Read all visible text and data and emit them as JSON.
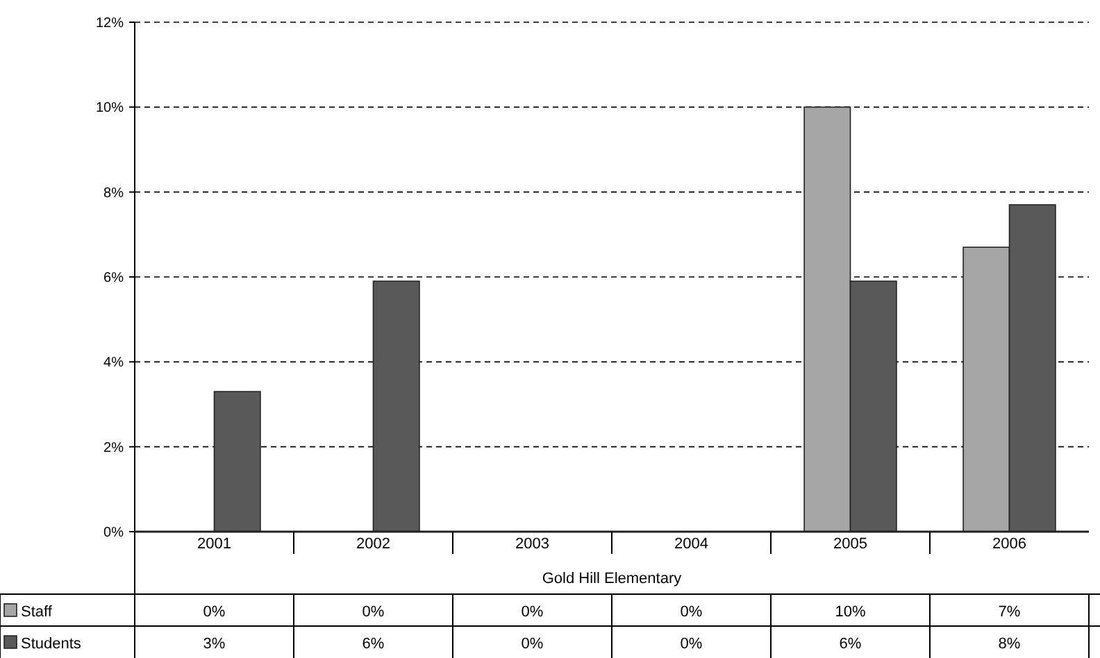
{
  "chart_data": {
    "type": "bar",
    "xlabel": "Gold Hill Elementary",
    "categories": [
      "2001",
      "2002",
      "2003",
      "2004",
      "2005",
      "2006"
    ],
    "series": [
      {
        "name": "Staff",
        "color": "#a6a6a6",
        "values": [
          0,
          0,
          0,
          0,
          10,
          6.7
        ],
        "value_labels": [
          "0%",
          "0%",
          "0%",
          "0%",
          "10%",
          "7%"
        ]
      },
      {
        "name": "Students",
        "color": "#595959",
        "values": [
          3.3,
          5.9,
          0,
          0,
          5.9,
          7.7
        ],
        "value_labels": [
          "3%",
          "6%",
          "0%",
          "0%",
          "6%",
          "8%"
        ]
      }
    ],
    "ylim": [
      0,
      12
    ],
    "yticks": [
      {
        "value": 0,
        "label": "0%"
      },
      {
        "value": 2,
        "label": "2%"
      },
      {
        "value": 4,
        "label": "4%"
      },
      {
        "value": 6,
        "label": "6%"
      },
      {
        "value": 8,
        "label": "8%"
      },
      {
        "value": 10,
        "label": "10%"
      },
      {
        "value": 12,
        "label": "12%"
      }
    ],
    "grid": "y",
    "legend": "bottom left"
  }
}
